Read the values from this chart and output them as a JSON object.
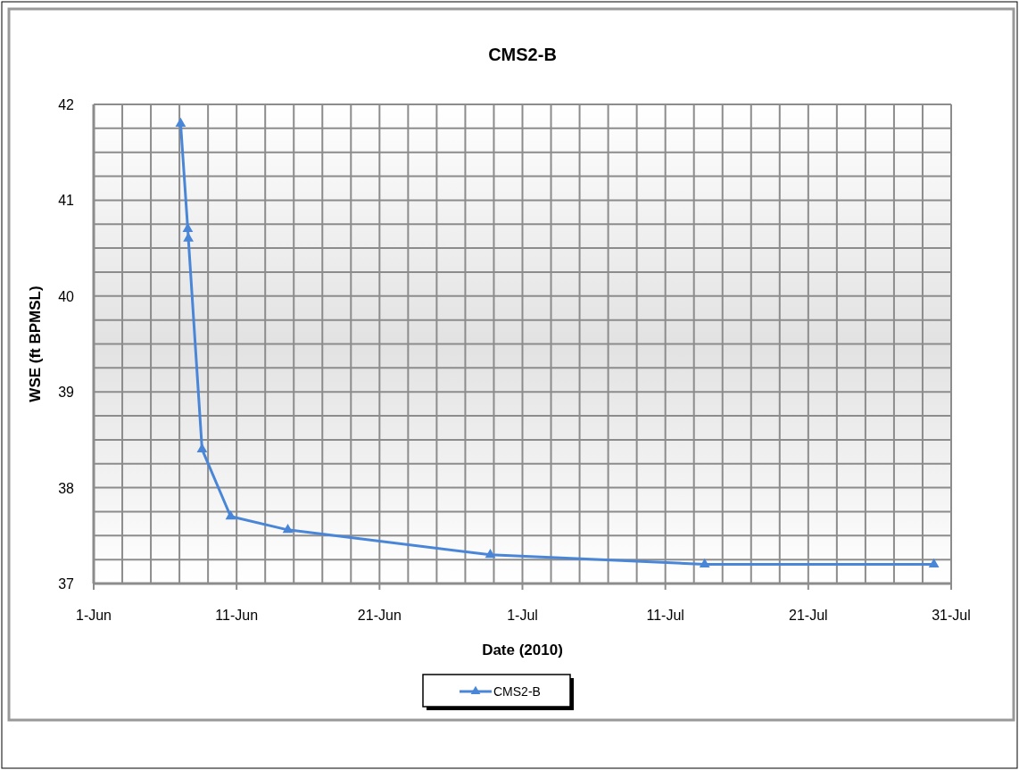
{
  "chart_data": {
    "type": "line",
    "title": "CMS2-B",
    "xlabel": "Date (2010)",
    "ylabel": "WSE (ft BPMSL)",
    "x": [
      "2010-06-07T02:00",
      "2010-06-07T14:00",
      "2010-06-07T15:00",
      "2010-06-08T14:00",
      "2010-06-10T14:00",
      "2010-06-14T14:00",
      "2010-06-28T18:00",
      "2010-07-13T18:00",
      "2010-07-29T19:00"
    ],
    "series": [
      {
        "name": "CMS2-B",
        "color": "#4a86d8",
        "values": [
          41.8,
          40.7,
          40.6,
          38.4,
          37.7,
          37.56,
          37.3,
          37.2,
          37.2
        ]
      }
    ],
    "xlim": [
      "2010-06-01",
      "2010-07-31"
    ],
    "xticks": [
      {
        "value": "2010-06-01",
        "label": "1-Jun"
      },
      {
        "value": "2010-06-03",
        "label": null
      },
      {
        "value": "2010-06-05",
        "label": null
      },
      {
        "value": "2010-06-07",
        "label": null
      },
      {
        "value": "2010-06-09",
        "label": null
      },
      {
        "value": "2010-06-11",
        "label": "11-Jun"
      },
      {
        "value": "2010-06-13",
        "label": null
      },
      {
        "value": "2010-06-15",
        "label": null
      },
      {
        "value": "2010-06-17",
        "label": null
      },
      {
        "value": "2010-06-19",
        "label": null
      },
      {
        "value": "2010-06-21",
        "label": "21-Jun"
      },
      {
        "value": "2010-06-23",
        "label": null
      },
      {
        "value": "2010-06-25",
        "label": null
      },
      {
        "value": "2010-06-27",
        "label": null
      },
      {
        "value": "2010-06-29",
        "label": null
      },
      {
        "value": "2010-07-01",
        "label": "1-Jul"
      },
      {
        "value": "2010-07-03",
        "label": null
      },
      {
        "value": "2010-07-05",
        "label": null
      },
      {
        "value": "2010-07-07",
        "label": null
      },
      {
        "value": "2010-07-09",
        "label": null
      },
      {
        "value": "2010-07-11",
        "label": "11-Jul"
      },
      {
        "value": "2010-07-13",
        "label": null
      },
      {
        "value": "2010-07-15",
        "label": null
      },
      {
        "value": "2010-07-17",
        "label": null
      },
      {
        "value": "2010-07-19",
        "label": null
      },
      {
        "value": "2010-07-21",
        "label": "21-Jul"
      },
      {
        "value": "2010-07-23",
        "label": null
      },
      {
        "value": "2010-07-25",
        "label": null
      },
      {
        "value": "2010-07-27",
        "label": null
      },
      {
        "value": "2010-07-29",
        "label": null
      },
      {
        "value": "2010-07-31",
        "label": "31-Jul"
      }
    ],
    "ylim": [
      37,
      42
    ],
    "yticks": [
      37,
      {
        "value": 37.25,
        "label": null
      },
      {
        "value": 37.5,
        "label": null
      },
      {
        "value": 37.75,
        "label": null
      },
      38,
      {
        "value": 38.25,
        "label": null
      },
      {
        "value": 38.5,
        "label": null
      },
      {
        "value": 38.75,
        "label": null
      },
      39,
      {
        "value": 39.25,
        "label": null
      },
      {
        "value": 39.5,
        "label": null
      },
      {
        "value": 39.75,
        "label": null
      },
      40,
      {
        "value": 40.25,
        "label": null
      },
      {
        "value": 40.5,
        "label": null
      },
      {
        "value": 40.75,
        "label": null
      },
      41,
      {
        "value": 41.25,
        "label": null
      },
      {
        "value": 41.5,
        "label": null
      },
      {
        "value": 41.75,
        "label": null
      },
      42
    ],
    "grid": true,
    "legend": "bottom",
    "marker": "triangle",
    "line_style": "solid"
  }
}
